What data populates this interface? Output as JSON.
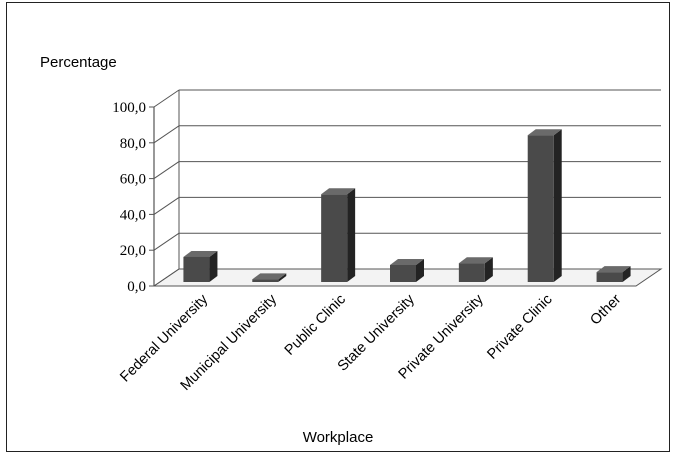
{
  "chart_data": {
    "type": "bar",
    "style": "3d-column",
    "title": "",
    "ylabel": "Percentage",
    "xlabel": "Workplace",
    "categories": [
      "Federal University",
      "Municipal University",
      "Public Clinic",
      "State University",
      "Private University",
      "Private Clinic",
      "Other"
    ],
    "values": [
      14.0,
      1.5,
      49.0,
      9.5,
      10.5,
      82.0,
      5.5
    ],
    "ylim": [
      0,
      100
    ],
    "yticks": [
      "0,0",
      "20,0",
      "40,0",
      "60,0",
      "80,0",
      "100,0"
    ],
    "grid": true,
    "legend": "none",
    "colors": {
      "bar_front": "#4a4a4a",
      "bar_side": "#232323",
      "bar_top": "#6a6a6a",
      "grid": "#555555",
      "floor": "#f3f3f3"
    }
  }
}
